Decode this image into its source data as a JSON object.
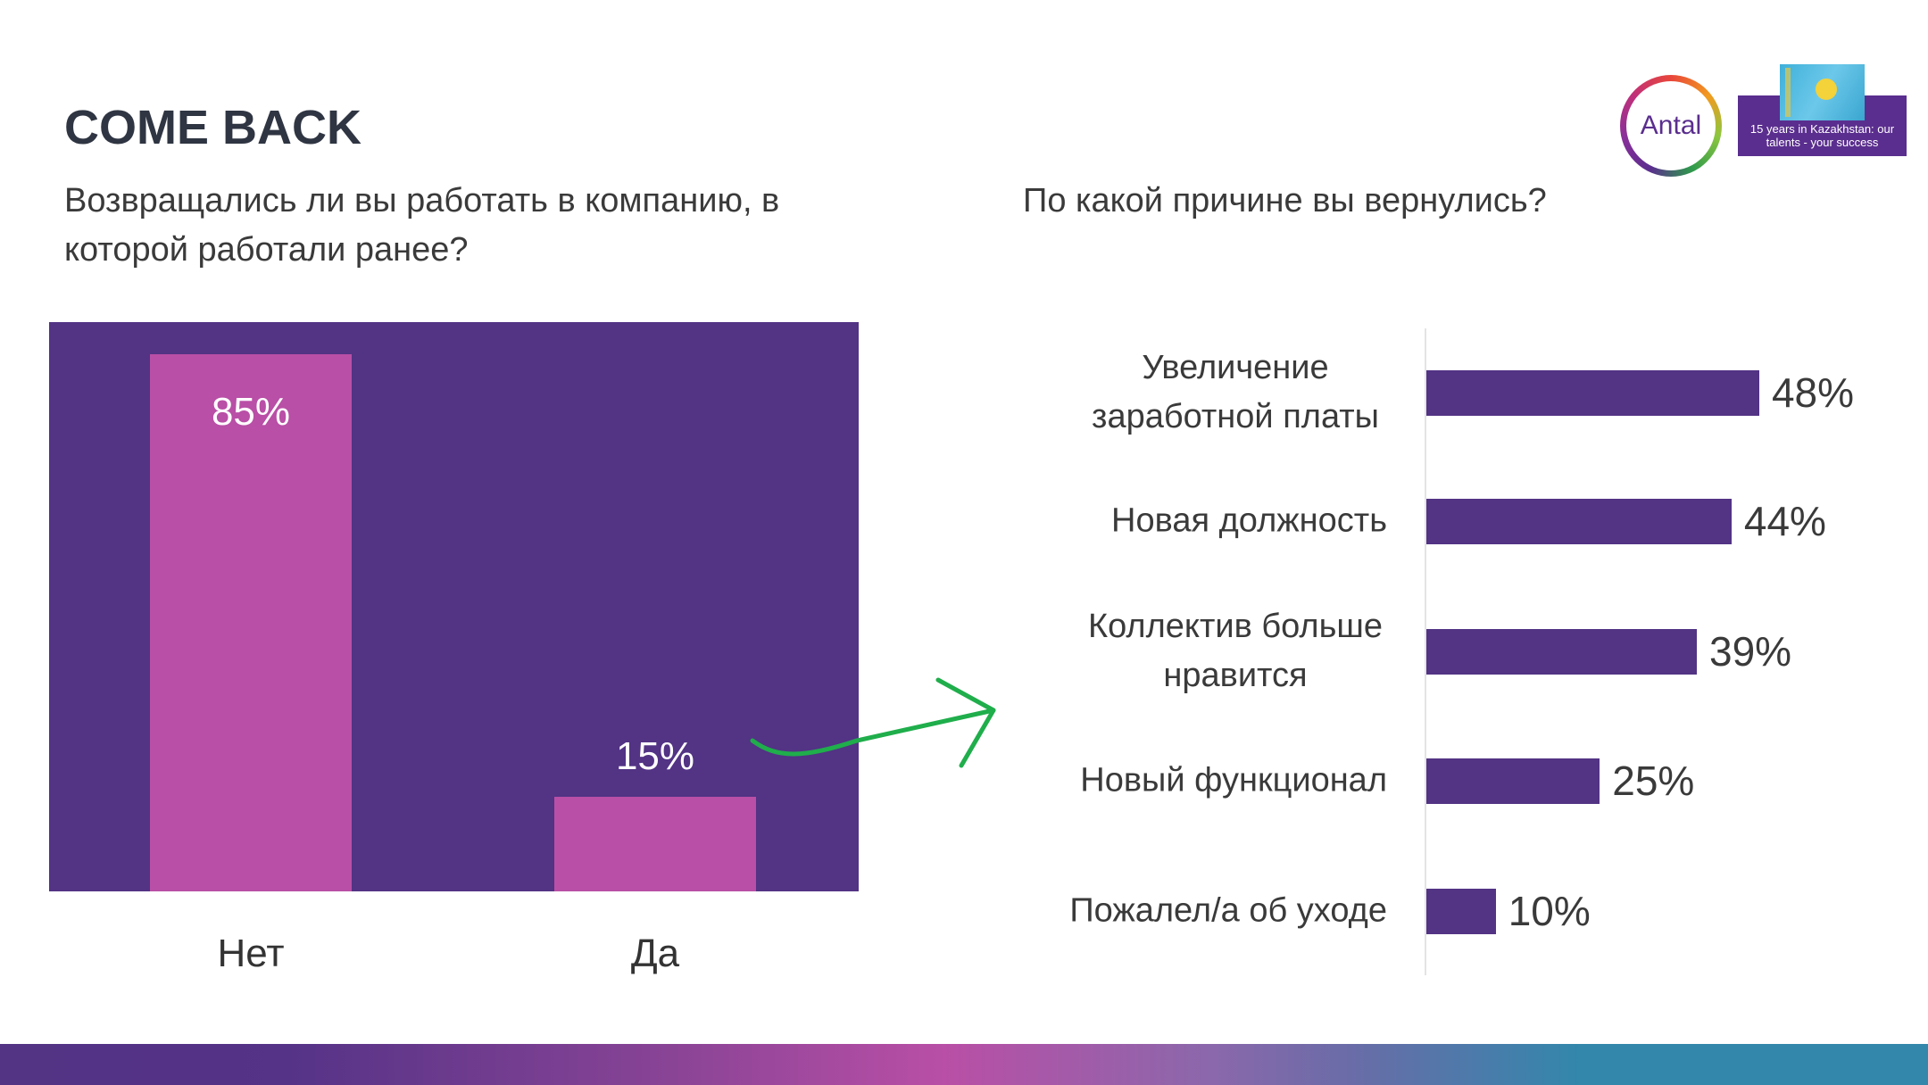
{
  "title": "COME BACK",
  "logo": {
    "brand": "Antal",
    "banner": "15 years in Kazakhstan: our talents - your success"
  },
  "colors": {
    "panel": "#523384",
    "bar": "#b94fa6",
    "hbar": "#523384",
    "arrow": "#1fae4b"
  },
  "chart_data": [
    {
      "type": "bar",
      "title": "Возвращались ли вы работать в компанию, в которой работали ранее?",
      "categories": [
        "Нет",
        "Да"
      ],
      "values": [
        85,
        15
      ],
      "labels": [
        "85%",
        "15%"
      ],
      "ylim": [
        0,
        100
      ],
      "grid": false
    },
    {
      "type": "bar",
      "orientation": "horizontal",
      "title": "По какой причине вы вернулись?",
      "categories": [
        "Увеличение заработной платы",
        "Новая должность",
        "Коллектив больше нравится",
        "Новый функционал",
        "Пожалел/а об уходе"
      ],
      "values": [
        48,
        44,
        39,
        25,
        10
      ],
      "labels": [
        "48%",
        "44%",
        "39%",
        "25%",
        "10%"
      ],
      "grid": false
    }
  ]
}
